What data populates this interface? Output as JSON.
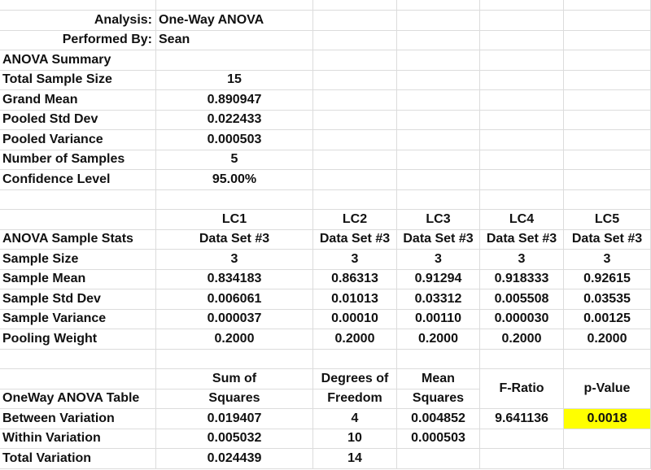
{
  "header": {
    "analysis_label": "Analysis:",
    "analysis_value": "One-Way ANOVA",
    "performed_label": "Performed By:",
    "performed_value": "Sean"
  },
  "summary": {
    "title": "ANOVA Summary",
    "rows": [
      {
        "label": "Total Sample Size",
        "value": "15"
      },
      {
        "label": "Grand Mean",
        "value": "0.890947"
      },
      {
        "label": "Pooled Std Dev",
        "value": "0.022433"
      },
      {
        "label": "Pooled Variance",
        "value": "0.000503"
      },
      {
        "label": "Number of Samples",
        "value": "5"
      },
      {
        "label": "Confidence Level",
        "value": "95.00%"
      }
    ]
  },
  "sample_stats": {
    "title": "ANOVA Sample Stats",
    "groups": [
      "LC1",
      "LC2",
      "LC3",
      "LC4",
      "LC5"
    ],
    "datasets": [
      "Data Set #3",
      "Data Set #3",
      "Data Set #3",
      "Data Set #3",
      "Data Set #3"
    ],
    "rows": [
      {
        "label": "Sample Size",
        "values": [
          "3",
          "3",
          "3",
          "3",
          "3"
        ]
      },
      {
        "label": "Sample Mean",
        "values": [
          "0.834183",
          "0.86313",
          "0.91294",
          "0.918333",
          "0.92615"
        ]
      },
      {
        "label": "Sample Std Dev",
        "values": [
          "0.006061",
          "0.01013",
          "0.03312",
          "0.005508",
          "0.03535"
        ]
      },
      {
        "label": "Sample Variance",
        "values": [
          "0.000037",
          "0.00010",
          "0.00110",
          "0.000030",
          "0.00125"
        ]
      },
      {
        "label": "Pooling Weight",
        "values": [
          "0.2000",
          "0.2000",
          "0.2000",
          "0.2000",
          "0.2000"
        ]
      }
    ]
  },
  "anova_table": {
    "title": "OneWay ANOVA Table",
    "headers": {
      "ss_top": "Sum of",
      "ss_bottom": "Squares",
      "df_top": "Degrees of",
      "df_bottom": "Freedom",
      "ms_top": "Mean",
      "ms_bottom": "Squares",
      "f": "F-Ratio",
      "p": "p-Value"
    },
    "rows": [
      {
        "label": "Between Variation",
        "ss": "0.019407",
        "df": "4",
        "ms": "0.004852",
        "f": "9.641136",
        "p": "0.0018"
      },
      {
        "label": "Within Variation",
        "ss": "0.005032",
        "df": "10",
        "ms": "0.000503",
        "f": "",
        "p": ""
      },
      {
        "label": "Total Variation",
        "ss": "0.024439",
        "df": "14",
        "ms": "",
        "f": "",
        "p": ""
      }
    ],
    "highlight_color": "#ffff00"
  }
}
